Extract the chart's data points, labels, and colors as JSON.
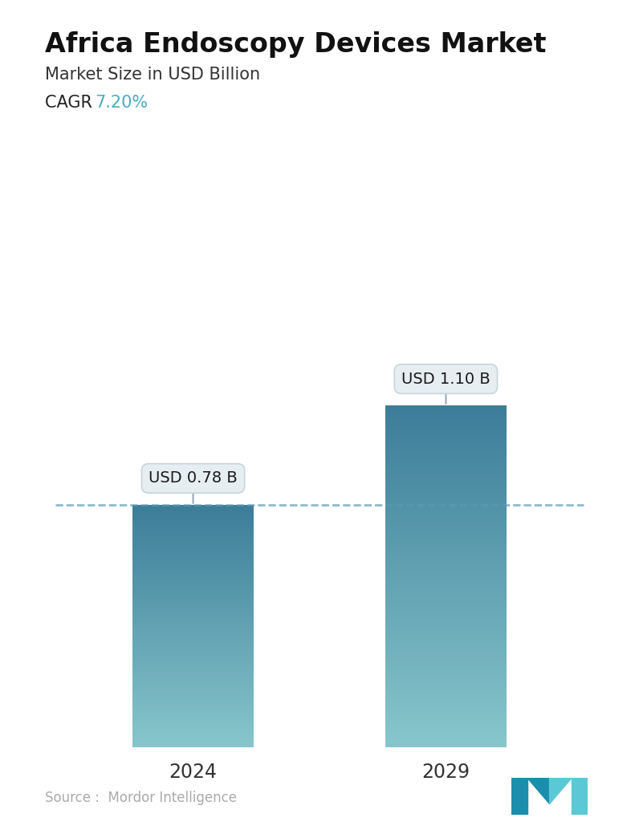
{
  "title": "Africa Endoscopy Devices Market",
  "subtitle": "Market Size in USD Billion",
  "cagr_label": "CAGR",
  "cagr_value": "7.20%",
  "cagr_color": "#4BACC6",
  "categories": [
    "2024",
    "2029"
  ],
  "values": [
    0.78,
    1.1
  ],
  "bar_labels": [
    "USD 0.78 B",
    "USD 1.10 B"
  ],
  "bar_top_color": "#3D7A94",
  "bar_bottom_color": "#7EC8CE",
  "dashed_line_color": "#5A9BB5",
  "background_color": "#ffffff",
  "source_text": "Source :  Mordor Intelligence",
  "source_color": "#aaaaaa",
  "title_fontsize": 24,
  "subtitle_fontsize": 15,
  "cagr_fontsize": 15,
  "xlabel_fontsize": 17,
  "annotation_fontsize": 14,
  "source_fontsize": 12,
  "ylim": [
    0,
    1.55
  ],
  "bar_width": 0.22,
  "x_positions": [
    0.27,
    0.73
  ]
}
